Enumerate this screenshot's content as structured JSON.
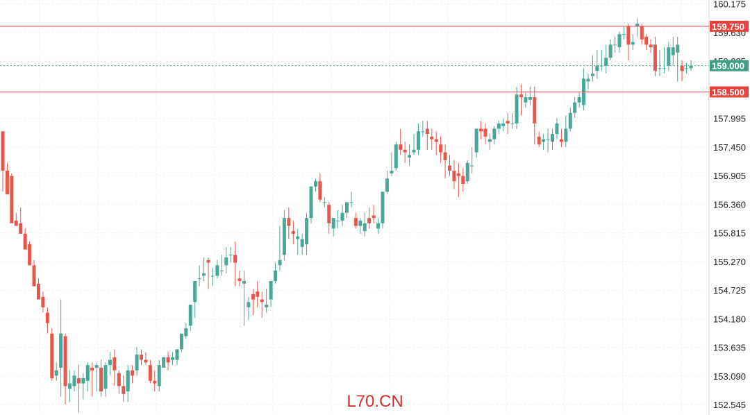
{
  "chart_data": {
    "type": "candlestick",
    "ylim": [
      152.35,
      160.25
    ],
    "y_ticks": [
      "160.175",
      "159.630",
      "159.085",
      "157.995",
      "157.450",
      "156.905",
      "156.360",
      "155.815",
      "155.270",
      "154.725",
      "154.180",
      "153.635",
      "153.090",
      "152.545"
    ],
    "grid": true,
    "horizontal_lines": [
      {
        "value": 159.75,
        "label": "159.750",
        "style": "solid",
        "color": "#e8423d"
      },
      {
        "value": 159.0,
        "label": "159.000",
        "style": "dotted",
        "color": "#3f9d88"
      },
      {
        "value": 158.5,
        "label": "158.500",
        "style": "solid",
        "color": "#e8423d"
      }
    ],
    "colors": {
      "up": "#4aa698",
      "down": "#e4574c"
    },
    "candles": [
      [
        157.75,
        157.55,
        157.0,
        156.6
      ],
      [
        157.0,
        157.15,
        156.55,
        156.9
      ],
      [
        156.9,
        156.95,
        156.0,
        156.05
      ],
      [
        156.05,
        156.2,
        155.95,
        156.0
      ],
      [
        156.0,
        156.3,
        155.8,
        155.9
      ],
      [
        155.8,
        155.9,
        155.5,
        155.6
      ],
      [
        155.6,
        155.65,
        155.2,
        155.25
      ],
      [
        155.2,
        155.3,
        154.8,
        154.85
      ],
      [
        154.85,
        154.95,
        154.55,
        154.6
      ],
      [
        154.6,
        154.7,
        154.4,
        154.3
      ],
      [
        154.3,
        154.4,
        154.1,
        153.9
      ],
      [
        153.9,
        154.0,
        153.05,
        153.0
      ],
      [
        153.1,
        153.35,
        153.2,
        153.0
      ],
      [
        153.25,
        154.55,
        153.9,
        152.7
      ],
      [
        153.85,
        153.9,
        152.9,
        152.55
      ],
      [
        152.85,
        153.2,
        152.95,
        152.6
      ],
      [
        152.9,
        153.2,
        153.1,
        152.8
      ],
      [
        153.05,
        153.3,
        152.95,
        152.4
      ],
      [
        152.95,
        153.15,
        153.05,
        152.65
      ],
      [
        153.0,
        153.35,
        153.3,
        152.8
      ],
      [
        153.25,
        153.35,
        153.2,
        152.7
      ],
      [
        153.25,
        153.35,
        153.3,
        152.8
      ],
      [
        153.25,
        153.4,
        152.8,
        152.7
      ],
      [
        152.85,
        153.35,
        153.3,
        152.7
      ],
      [
        153.3,
        153.55,
        153.4,
        153.1
      ],
      [
        153.45,
        153.6,
        153.2,
        152.9
      ],
      [
        153.15,
        153.2,
        152.9,
        152.75
      ],
      [
        152.9,
        153.1,
        152.75,
        152.6
      ],
      [
        152.8,
        153.3,
        153.2,
        152.6
      ],
      [
        153.2,
        153.3,
        153.1,
        152.95
      ],
      [
        153.2,
        153.65,
        153.5,
        153.1
      ],
      [
        153.5,
        153.6,
        153.4,
        153.3
      ],
      [
        153.4,
        153.55,
        153.35,
        153.3
      ],
      [
        153.3,
        153.4,
        153.0,
        152.95
      ],
      [
        153.0,
        153.2,
        152.95,
        152.8
      ],
      [
        152.9,
        153.4,
        153.3,
        152.8
      ],
      [
        153.25,
        153.4,
        153.45,
        153.25
      ],
      [
        153.45,
        153.55,
        153.35,
        153.2
      ],
      [
        153.4,
        153.55,
        153.45,
        153.3
      ],
      [
        153.4,
        153.6,
        153.6,
        153.3
      ],
      [
        153.6,
        153.8,
        153.9,
        153.55
      ],
      [
        153.85,
        154.1,
        154.0,
        153.8
      ],
      [
        154.05,
        154.4,
        154.45,
        153.95
      ],
      [
        154.5,
        154.85,
        154.9,
        154.2
      ],
      [
        154.95,
        155.2,
        154.95,
        154.8
      ],
      [
        155.0,
        155.35,
        155.05,
        154.9
      ],
      [
        155.3,
        155.35,
        155.25,
        154.75
      ],
      [
        155.0,
        155.15,
        155.0,
        154.8
      ],
      [
        155.0,
        155.3,
        155.2,
        154.95
      ],
      [
        155.1,
        155.4,
        155.1,
        155.0
      ],
      [
        155.2,
        155.55,
        155.35,
        155.05
      ],
      [
        155.4,
        155.55,
        155.4,
        155.25
      ],
      [
        155.4,
        155.65,
        155.25,
        154.8
      ],
      [
        154.95,
        155.1,
        154.9,
        154.8
      ],
      [
        154.85,
        155.1,
        154.9,
        154.05
      ],
      [
        154.4,
        154.6,
        154.5,
        154.15
      ],
      [
        154.65,
        154.75,
        154.55,
        154.25
      ],
      [
        154.7,
        154.9,
        154.6,
        154.4
      ],
      [
        154.55,
        154.7,
        154.5,
        154.2
      ],
      [
        154.4,
        154.75,
        154.45,
        154.3
      ],
      [
        154.55,
        154.9,
        154.9,
        154.4
      ],
      [
        154.9,
        155.25,
        155.1,
        154.85
      ],
      [
        155.2,
        155.95,
        155.3,
        155.1
      ],
      [
        155.4,
        156.25,
        156.1,
        155.3
      ],
      [
        156.1,
        156.3,
        155.95,
        155.7
      ],
      [
        155.85,
        156.05,
        155.8,
        155.6
      ],
      [
        155.7,
        155.9,
        155.75,
        155.4
      ],
      [
        155.55,
        155.8,
        155.7,
        155.4
      ],
      [
        155.6,
        156.2,
        156.1,
        155.4
      ],
      [
        156.1,
        156.7,
        156.7,
        156.0
      ],
      [
        156.7,
        156.85,
        156.8,
        156.6
      ],
      [
        156.8,
        156.95,
        156.45,
        156.4
      ],
      [
        156.4,
        156.5,
        156.4,
        156.3
      ],
      [
        156.35,
        156.4,
        156.0,
        155.8
      ],
      [
        155.9,
        156.1,
        156.1,
        155.75
      ],
      [
        156.05,
        156.25,
        156.05,
        155.9
      ],
      [
        156.05,
        156.35,
        156.2,
        155.95
      ],
      [
        156.2,
        156.4,
        156.4,
        156.1
      ],
      [
        156.4,
        156.6,
        156.4,
        156.3
      ],
      [
        156.1,
        156.2,
        155.95,
        155.9
      ],
      [
        155.95,
        156.1,
        156.05,
        155.8
      ],
      [
        155.85,
        156.2,
        156.0,
        155.75
      ],
      [
        156.1,
        156.3,
        156.0,
        155.9
      ],
      [
        156.15,
        156.35,
        156.1,
        156.0
      ],
      [
        155.9,
        156.1,
        156.0,
        155.8
      ],
      [
        156.0,
        156.5,
        156.6,
        155.9
      ],
      [
        156.6,
        157.0,
        156.85,
        156.55
      ],
      [
        156.95,
        157.35,
        157.0,
        156.9
      ],
      [
        157.05,
        157.55,
        157.5,
        157.0
      ],
      [
        157.5,
        157.8,
        157.4,
        157.3
      ],
      [
        157.4,
        157.55,
        157.35,
        157.15
      ],
      [
        157.25,
        157.5,
        157.3,
        157.1
      ],
      [
        157.35,
        157.7,
        157.4,
        157.3
      ],
      [
        157.4,
        157.9,
        157.75,
        157.3
      ],
      [
        157.75,
        157.95,
        157.75,
        157.65
      ],
      [
        157.8,
        157.95,
        157.7,
        157.4
      ],
      [
        157.65,
        157.8,
        157.6,
        157.4
      ],
      [
        157.6,
        157.75,
        157.55,
        157.3
      ],
      [
        157.5,
        157.65,
        157.35,
        157.15
      ],
      [
        157.35,
        157.5,
        157.2,
        156.85
      ],
      [
        157.1,
        157.3,
        157.0,
        156.9
      ],
      [
        157.0,
        157.2,
        156.8,
        156.65
      ],
      [
        156.95,
        157.15,
        156.9,
        156.5
      ],
      [
        156.9,
        157.05,
        156.75,
        156.6
      ],
      [
        156.8,
        157.2,
        157.15,
        156.75
      ],
      [
        157.1,
        157.45,
        157.1,
        156.95
      ],
      [
        157.35,
        157.8,
        157.8,
        157.25
      ],
      [
        157.8,
        157.95,
        157.75,
        157.6
      ],
      [
        157.8,
        157.9,
        157.65,
        157.5
      ],
      [
        157.55,
        157.7,
        157.6,
        157.4
      ],
      [
        157.6,
        157.85,
        157.8,
        157.5
      ],
      [
        157.8,
        157.95,
        157.9,
        157.7
      ],
      [
        157.85,
        158.0,
        157.9,
        157.75
      ],
      [
        157.95,
        158.1,
        157.9,
        157.7
      ],
      [
        157.9,
        158.1,
        157.9,
        157.8
      ],
      [
        157.9,
        158.6,
        158.45,
        157.8
      ],
      [
        158.45,
        158.65,
        158.4,
        158.05
      ],
      [
        158.3,
        158.5,
        158.4,
        158.2
      ],
      [
        158.35,
        158.6,
        158.4,
        158.25
      ],
      [
        158.4,
        158.6,
        157.9,
        157.5
      ],
      [
        157.65,
        157.75,
        157.5,
        157.45
      ],
      [
        157.55,
        157.7,
        157.6,
        157.4
      ],
      [
        157.6,
        157.8,
        157.6,
        157.35
      ],
      [
        157.55,
        157.8,
        157.7,
        157.4
      ],
      [
        157.7,
        158.0,
        157.9,
        157.6
      ],
      [
        157.6,
        157.8,
        157.55,
        157.45
      ],
      [
        157.55,
        158.05,
        157.8,
        157.45
      ],
      [
        157.8,
        158.2,
        158.1,
        157.75
      ],
      [
        158.1,
        158.4,
        158.3,
        158.0
      ],
      [
        158.3,
        158.5,
        158.4,
        158.2
      ],
      [
        158.25,
        158.95,
        158.75,
        158.15
      ],
      [
        158.7,
        158.85,
        158.75,
        158.55
      ],
      [
        158.8,
        159.2,
        158.85,
        158.7
      ],
      [
        158.9,
        159.3,
        159.0,
        158.75
      ],
      [
        159.0,
        159.3,
        159.0,
        158.9
      ],
      [
        159.0,
        159.4,
        159.15,
        158.85
      ],
      [
        159.15,
        159.5,
        159.4,
        159.1
      ],
      [
        159.4,
        159.55,
        159.4,
        159.25
      ],
      [
        159.35,
        159.65,
        159.6,
        159.25
      ],
      [
        159.6,
        159.75,
        159.6,
        159.5
      ],
      [
        159.75,
        159.8,
        159.4,
        159.1
      ],
      [
        159.4,
        159.6,
        159.45,
        159.3
      ],
      [
        159.75,
        159.9,
        159.8,
        159.55
      ],
      [
        159.75,
        159.8,
        159.5,
        159.4
      ],
      [
        159.55,
        159.6,
        159.4,
        159.3
      ],
      [
        159.4,
        159.5,
        159.35,
        159.25
      ],
      [
        159.4,
        159.55,
        158.9,
        158.8
      ],
      [
        158.95,
        159.3,
        158.95,
        158.8
      ],
      [
        158.95,
        159.35,
        158.95,
        158.85
      ],
      [
        159.0,
        159.45,
        159.35,
        158.9
      ],
      [
        159.2,
        159.55,
        159.35,
        159.0
      ],
      [
        159.25,
        159.55,
        159.4,
        158.7
      ],
      [
        159.0,
        159.1,
        158.9,
        158.7
      ],
      [
        158.95,
        159.05,
        158.95,
        158.85
      ],
      [
        158.95,
        159.1,
        159.0,
        158.9
      ]
    ]
  },
  "watermark": "L70.CN"
}
